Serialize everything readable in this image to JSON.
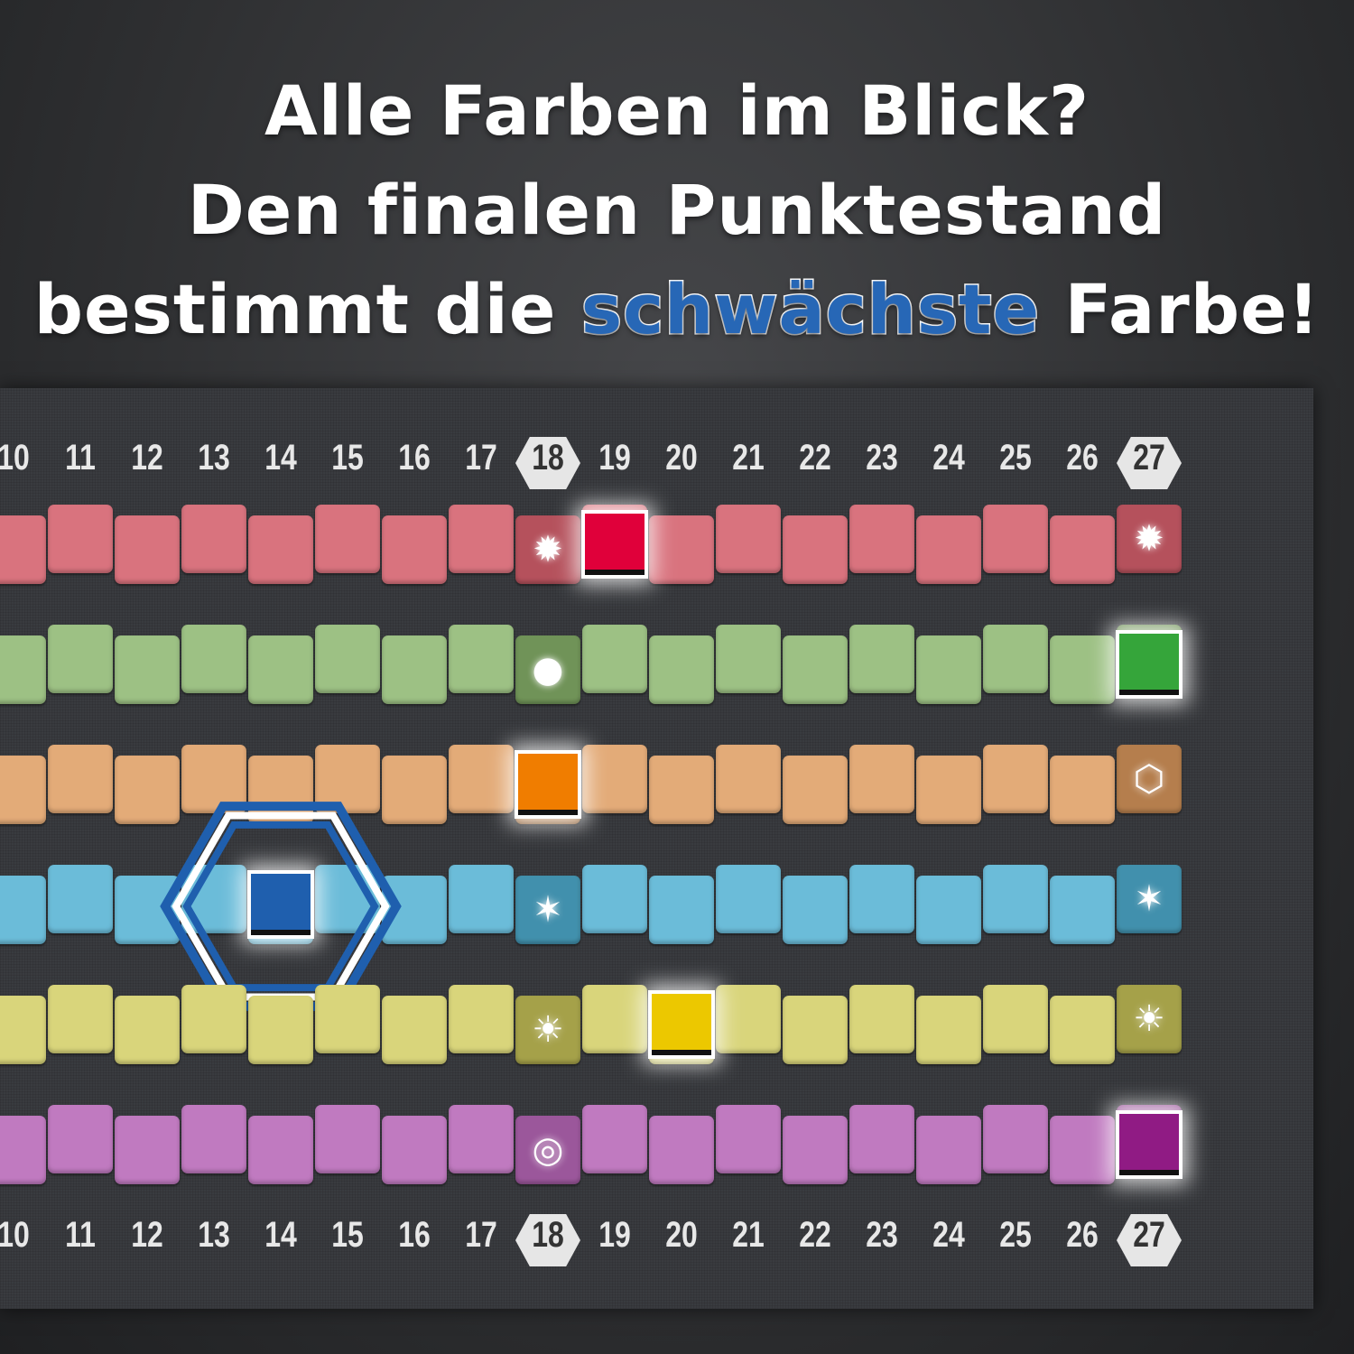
{
  "headline": {
    "line1": "Alle Farben im Blick?",
    "line2": "Den finalen Punktestand",
    "line3_pre": "bestimmt die",
    "line3_highlight": "schwächste",
    "line3_post": "Farbe!",
    "highlight_color": "#2767b6"
  },
  "score_track": {
    "numbers": [
      "10",
      "11",
      "12",
      "13",
      "14",
      "15",
      "16",
      "17",
      "18",
      "19",
      "20",
      "21",
      "22",
      "23",
      "24",
      "25",
      "26",
      "27"
    ],
    "hex_numbers": [
      "18",
      "27"
    ]
  },
  "tracks": [
    {
      "color": "red",
      "track_color": "#d9737e",
      "token_color": "#e0003a",
      "token_position": 19,
      "special_icon": "starburst-icon"
    },
    {
      "color": "green",
      "track_color": "#9dc184",
      "token_color": "#35a53a",
      "token_position": 27,
      "special_icon": "marble-icon"
    },
    {
      "color": "orange",
      "track_color": "#e3ab78",
      "token_color": "#f07d00",
      "token_position": 18,
      "special_icon": "hexagon-icon"
    },
    {
      "color": "blue",
      "track_color": "#6bbcd9",
      "token_color": "#1f5fae",
      "token_position": 14,
      "special_icon": "star-icon",
      "highlighted_weakest": true
    },
    {
      "color": "yellow",
      "track_color": "#d9d57b",
      "token_color": "#ecc800",
      "token_position": 20,
      "special_icon": "sun-icon"
    },
    {
      "color": "purple",
      "track_color": "#c07ac0",
      "token_color": "#901b84",
      "token_position": 27,
      "special_icon": "ring-icon"
    }
  ]
}
